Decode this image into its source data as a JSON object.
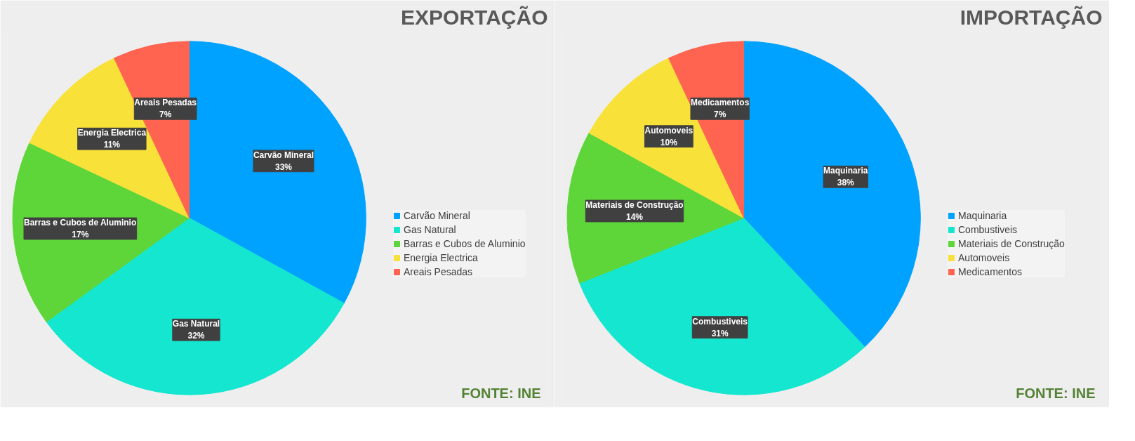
{
  "chart_data": [
    {
      "type": "pie",
      "title": "EXPORTAÇÃO",
      "categories": [
        "Carvão Mineral",
        "Gas Natural",
        "Barras e Cubos de Aluminio",
        "Energia Electrica",
        "Areais Pesadas"
      ],
      "values": [
        33,
        32,
        17,
        11,
        7
      ],
      "value_labels": [
        "33%",
        "32%",
        "17%",
        "11%",
        "7%"
      ],
      "colors": [
        "#00a2ff",
        "#14e6d0",
        "#5ed63a",
        "#f8e23a",
        "#ff6451"
      ],
      "data_labels": true,
      "legend": "right",
      "annotations": [
        "FONTE: INE"
      ]
    },
    {
      "type": "pie",
      "title": "IMPORTAÇÃO",
      "categories": [
        "Maquinaria",
        "Combustiveis",
        "Materiais de Construção",
        "Automoveis",
        "Medicamentos"
      ],
      "values": [
        38,
        31,
        14,
        10,
        7
      ],
      "value_labels": [
        "38%",
        "31%",
        "14%",
        "10%",
        "7%"
      ],
      "colors": [
        "#00a2ff",
        "#14e6d0",
        "#5ed63a",
        "#f8e23a",
        "#ff6451"
      ],
      "data_labels": true,
      "legend": "right",
      "annotations": [
        "FONTE: INE"
      ]
    }
  ]
}
